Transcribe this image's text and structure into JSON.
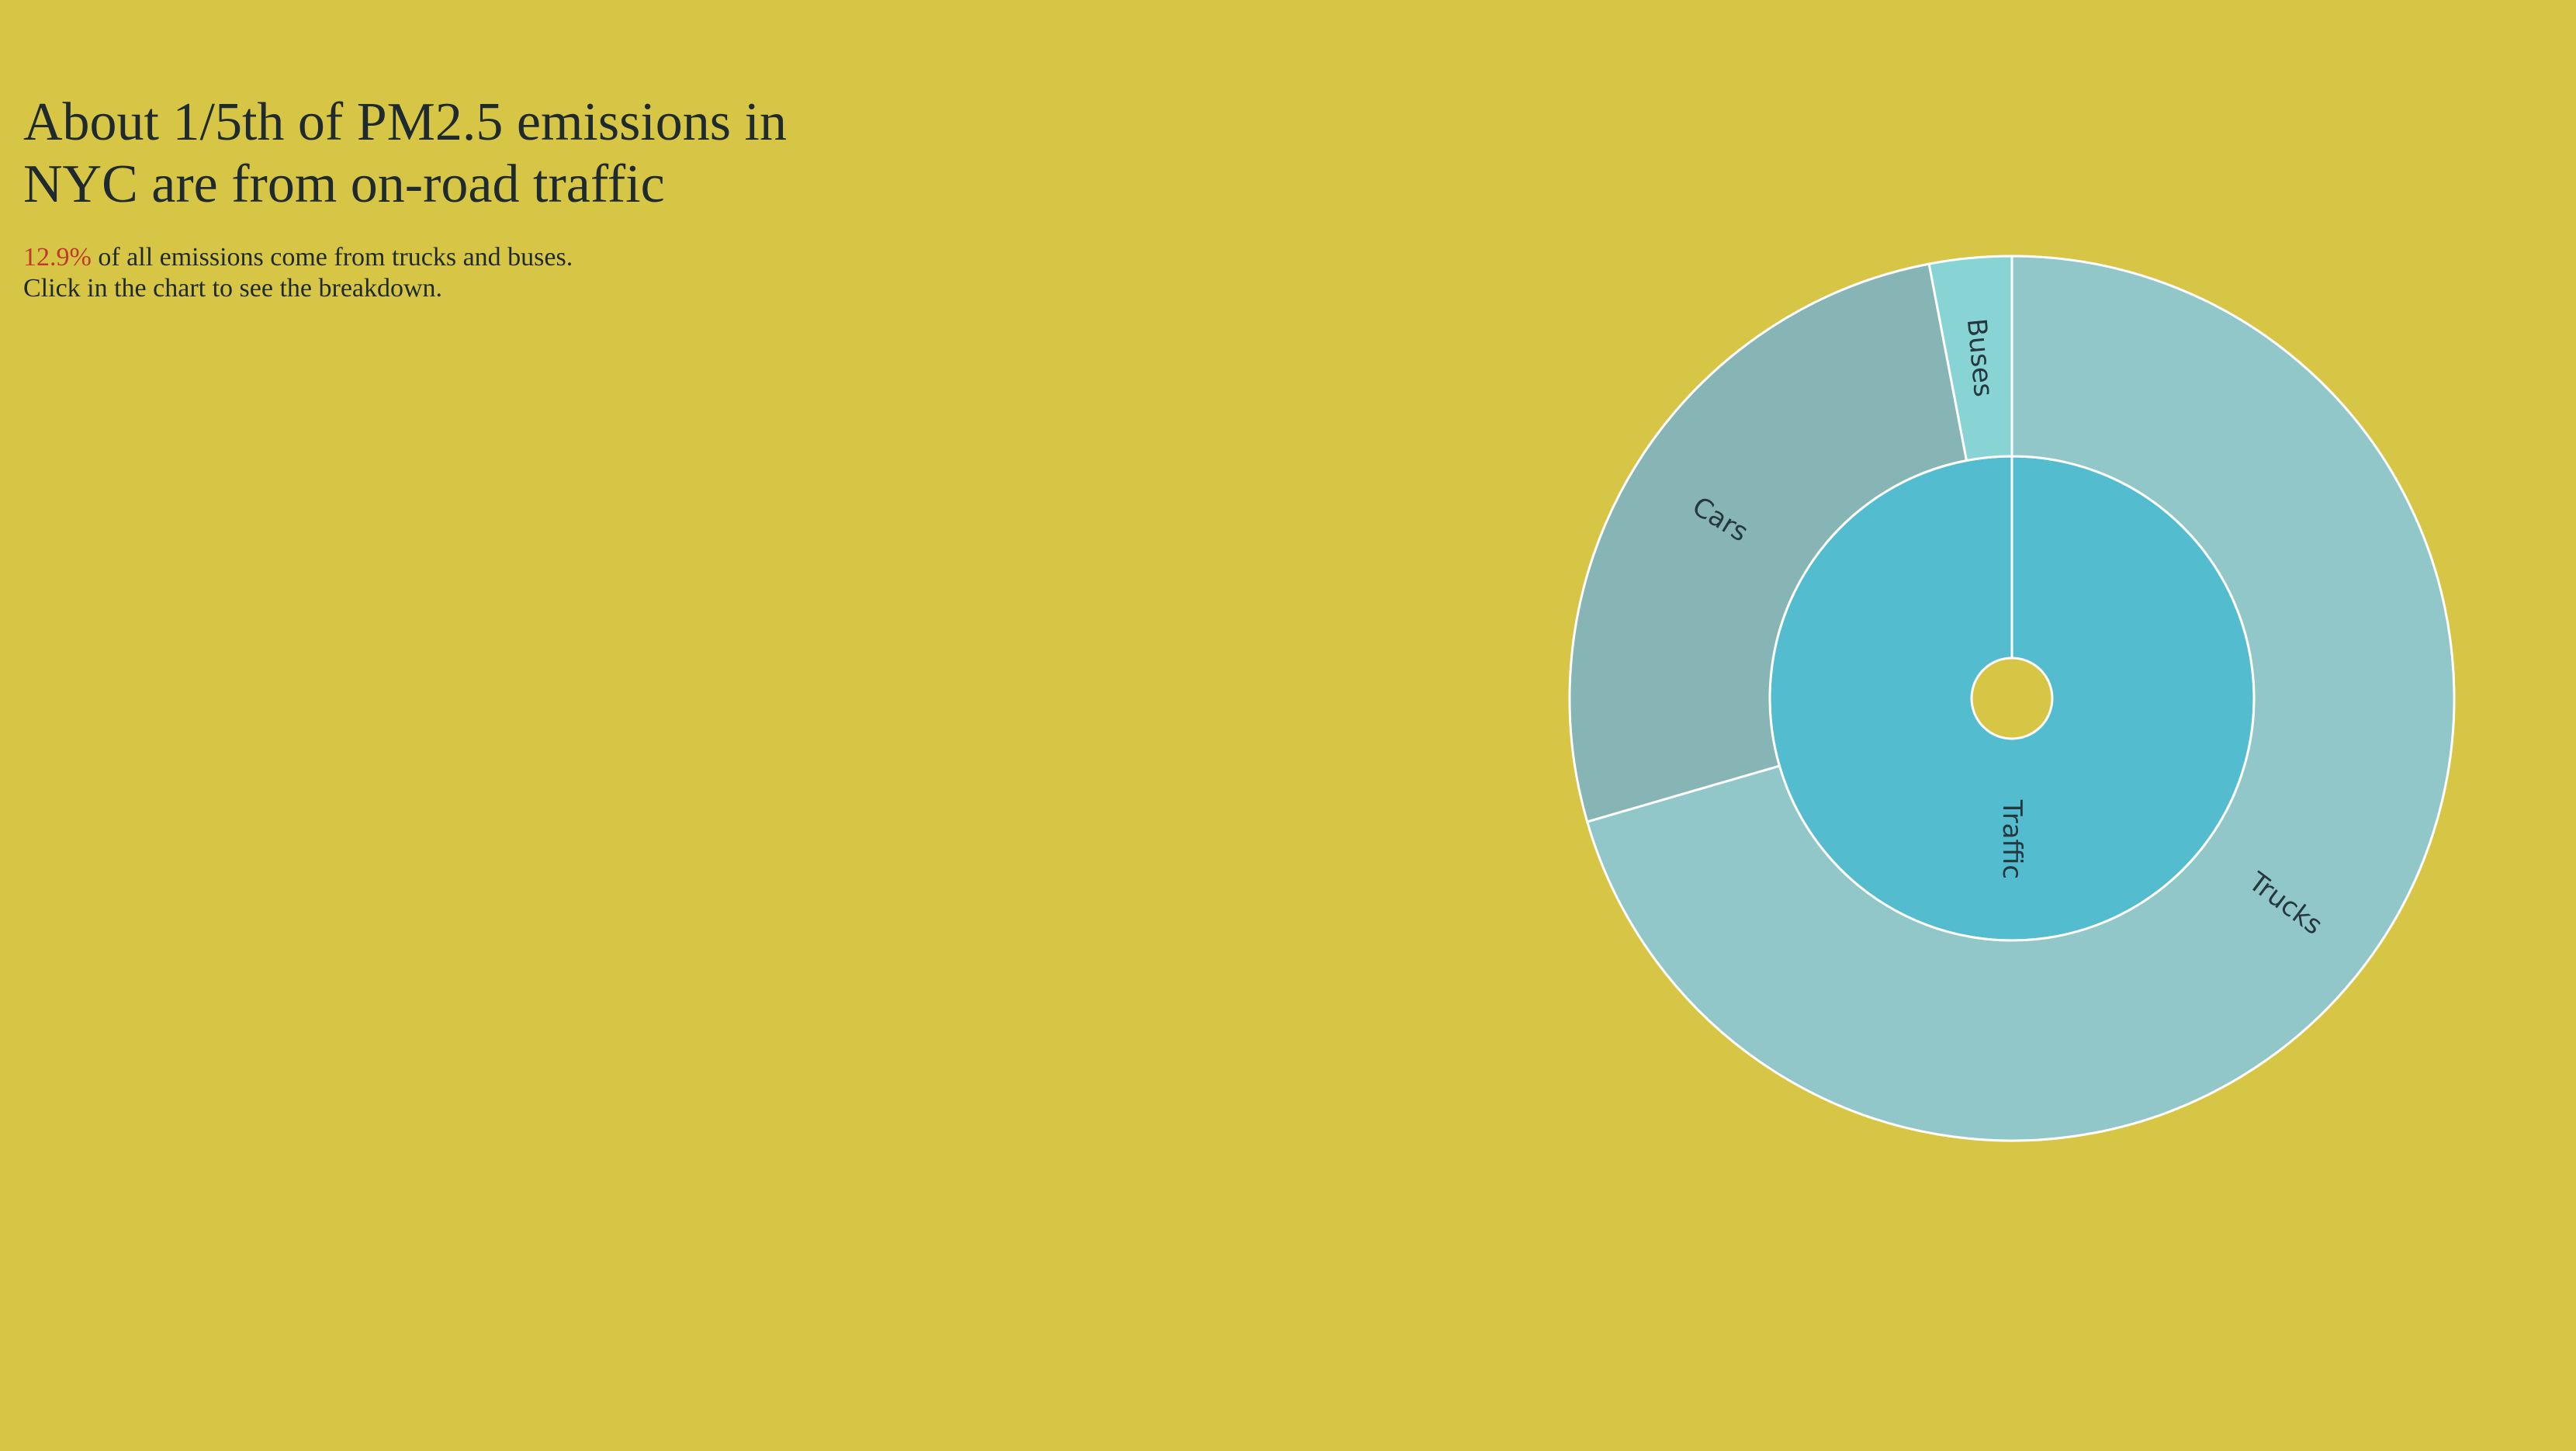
{
  "header": {
    "title": "About 1/5th of PM2.5 emissions in NYC are from on-road traffic",
    "highlight_value": "12.9%",
    "subtitle_rest": " of all emissions come from trucks and buses.",
    "subtitle_line2": "Click in the chart to see the breakdown."
  },
  "colors": {
    "background": "#d7c546",
    "stroke": "#ffffff",
    "highlight": "#c0392b"
  },
  "chart_data": {
    "type": "sunburst",
    "title": "",
    "rings": [
      {
        "level": 1,
        "segments": [
          {
            "label": "Traffic",
            "value": 100,
            "color": "#54bccf"
          }
        ]
      },
      {
        "level": 2,
        "segments": [
          {
            "label": "Trucks",
            "value": 70.5,
            "color": "#92c7ca"
          },
          {
            "label": "Cars",
            "value": 26.5,
            "color": "#87b4b5"
          },
          {
            "label": "Buses",
            "value": 3.0,
            "color": "#88d3d4"
          }
        ]
      }
    ]
  }
}
